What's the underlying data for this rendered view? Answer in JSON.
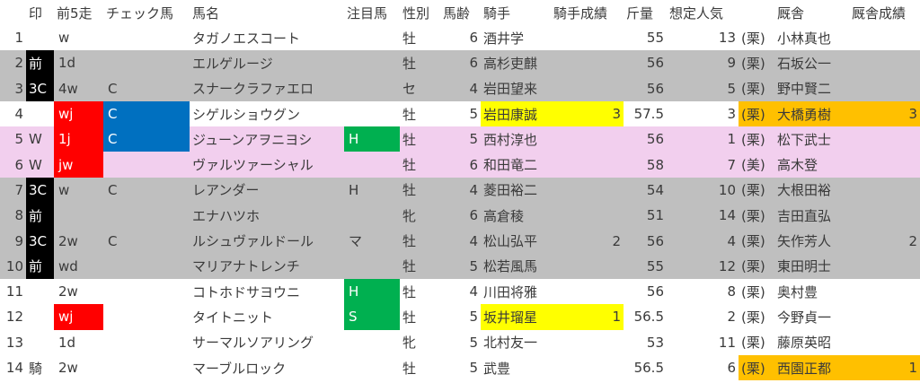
{
  "headers": [
    "印",
    "前5走",
    "チェック馬",
    "馬名",
    "注目馬",
    "性別",
    "馬齢",
    "騎手",
    "騎手成績",
    "斤量",
    "想定人気",
    "厩舎",
    "厩舎成績"
  ],
  "colors": {
    "gray": "#bfbfbf",
    "pink": "#f2cfee",
    "red": "#ff0000",
    "blue": "#0070c0",
    "green": "#00b050",
    "yellow": "#ffff00",
    "orange": "#ffc000",
    "black": "#000000"
  },
  "rows": [
    {
      "no": "1",
      "mark": "",
      "zen": "w",
      "check": "",
      "name": "タガノエスコート",
      "chumoku": "",
      "sex": "牡",
      "age": "6",
      "jockey": "酒井学",
      "jscore": "",
      "kin": "55",
      "ninki": "13",
      "region": "(栗)",
      "trainer": "小林真也",
      "tscore": "",
      "bg": "white"
    },
    {
      "no": "2",
      "mark": "前",
      "zen": "1d",
      "check": "",
      "name": "エルゲルージ",
      "chumoku": "",
      "sex": "牡",
      "age": "6",
      "jockey": "高杉吏麒",
      "jscore": "",
      "kin": "56",
      "ninki": "9",
      "region": "(栗)",
      "trainer": "石坂公一",
      "tscore": "",
      "bg": "gray",
      "markBlack": true
    },
    {
      "no": "3",
      "mark": "3C",
      "zen": "4w",
      "check": "C",
      "name": "スナークラファエロ",
      "chumoku": "",
      "sex": "セ",
      "age": "4",
      "jockey": "岩田望来",
      "jscore": "",
      "kin": "56",
      "ninki": "5",
      "region": "(栗)",
      "trainer": "野中賢二",
      "tscore": "",
      "bg": "gray",
      "markBlack": true
    },
    {
      "no": "4",
      "mark": "",
      "zen": "wj",
      "check": "C",
      "name": "シゲルショウグン",
      "chumoku": "",
      "sex": "牡",
      "age": "5",
      "jockey": "岩田康誠",
      "jscore": "3",
      "kin": "57.5",
      "ninki": "3",
      "region": "(栗)",
      "trainer": "大橋勇樹",
      "tscore": "3",
      "bg": "white",
      "zenRed": true,
      "checkBlue": true,
      "jockeyYellow": true,
      "trainerOrange": true
    },
    {
      "no": "5",
      "mark": "W",
      "zen": "1j",
      "check": "C",
      "name": "ジューンアヲニヨシ",
      "chumoku": "H",
      "sex": "牡",
      "age": "5",
      "jockey": "西村淳也",
      "jscore": "",
      "kin": "56",
      "ninki": "1",
      "region": "(栗)",
      "trainer": "松下武士",
      "tscore": "",
      "bg": "pink",
      "zenRed": true,
      "checkBlue": true,
      "chumokuGreen": true
    },
    {
      "no": "6",
      "mark": "W",
      "zen": "jw",
      "check": "",
      "name": "ヴァルツァーシャル",
      "chumoku": "",
      "sex": "牡",
      "age": "6",
      "jockey": "和田竜二",
      "jscore": "",
      "kin": "58",
      "ninki": "7",
      "region": "(美)",
      "trainer": "高木登",
      "tscore": "",
      "bg": "pink",
      "zenRed": true
    },
    {
      "no": "7",
      "mark": "3C",
      "zen": "w",
      "check": "C",
      "name": "レアンダー",
      "chumoku": "H",
      "sex": "牡",
      "age": "4",
      "jockey": "菱田裕二",
      "jscore": "",
      "kin": "54",
      "ninki": "10",
      "region": "(栗)",
      "trainer": "大根田裕",
      "tscore": "",
      "bg": "gray",
      "markBlack": true
    },
    {
      "no": "8",
      "mark": "前",
      "zen": "",
      "check": "",
      "name": "エナハツホ",
      "chumoku": "",
      "sex": "牝",
      "age": "6",
      "jockey": "高倉稜",
      "jscore": "",
      "kin": "51",
      "ninki": "14",
      "region": "(栗)",
      "trainer": "吉田直弘",
      "tscore": "",
      "bg": "gray",
      "markBlack": true
    },
    {
      "no": "9",
      "mark": "3C",
      "zen": "2w",
      "check": "C",
      "name": "ルシュヴァルドール",
      "chumoku": "マ",
      "sex": "牡",
      "age": "4",
      "jockey": "松山弘平",
      "jscore": "2",
      "kin": "56",
      "ninki": "4",
      "region": "(栗)",
      "trainer": "矢作芳人",
      "tscore": "2",
      "bg": "gray",
      "markBlack": true
    },
    {
      "no": "10",
      "mark": "前",
      "zen": "wd",
      "check": "",
      "name": "マリアナトレンチ",
      "chumoku": "",
      "sex": "牡",
      "age": "5",
      "jockey": "松若風馬",
      "jscore": "",
      "kin": "55",
      "ninki": "12",
      "region": "(栗)",
      "trainer": "東田明士",
      "tscore": "",
      "bg": "gray",
      "markBlack": true
    },
    {
      "no": "11",
      "mark": "",
      "zen": "2w",
      "check": "",
      "name": "コトホドサヨウニ",
      "chumoku": "H",
      "sex": "牡",
      "age": "4",
      "jockey": "川田将雅",
      "jscore": "",
      "kin": "56",
      "ninki": "8",
      "region": "(栗)",
      "trainer": "奥村豊",
      "tscore": "",
      "bg": "white",
      "chumokuGreen": true
    },
    {
      "no": "12",
      "mark": "",
      "zen": "wj",
      "check": "",
      "name": "タイトニット",
      "chumoku": "S",
      "sex": "牡",
      "age": "5",
      "jockey": "坂井瑠星",
      "jscore": "1",
      "kin": "56.5",
      "ninki": "2",
      "region": "(栗)",
      "trainer": "今野貞一",
      "tscore": "",
      "bg": "white",
      "zenRed": true,
      "chumokuGreen": true,
      "jockeyYellow": true
    },
    {
      "no": "13",
      "mark": "",
      "zen": "1d",
      "check": "",
      "name": "サーマルソアリング",
      "chumoku": "",
      "sex": "牝",
      "age": "5",
      "jockey": "北村友一",
      "jscore": "",
      "kin": "53",
      "ninki": "11",
      "region": "(栗)",
      "trainer": "藤原英昭",
      "tscore": "",
      "bg": "white"
    },
    {
      "no": "14",
      "mark": "騎",
      "zen": "2w",
      "check": "",
      "name": "マーブルロック",
      "chumoku": "",
      "sex": "牡",
      "age": "5",
      "jockey": "武豊",
      "jscore": "",
      "kin": "56.5",
      "ninki": "6",
      "region": "(栗)",
      "trainer": "西園正都",
      "tscore": "1",
      "bg": "white",
      "trainerOrange": true
    }
  ]
}
